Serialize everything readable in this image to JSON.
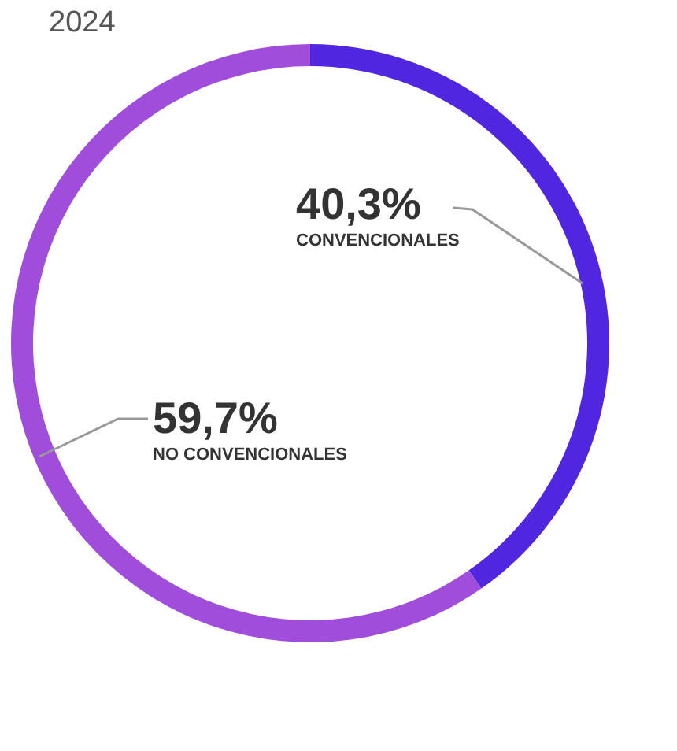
{
  "chart_data": {
    "type": "donut",
    "title": "2024",
    "categories": [
      "CONVENCIONALES",
      "NO CONVENCIONALES"
    ],
    "values": [
      40.3,
      59.7
    ],
    "colors": [
      "#5026e0",
      "#a04ddc"
    ],
    "value_labels": [
      "40,3%",
      "59,7%"
    ],
    "legend": false
  }
}
